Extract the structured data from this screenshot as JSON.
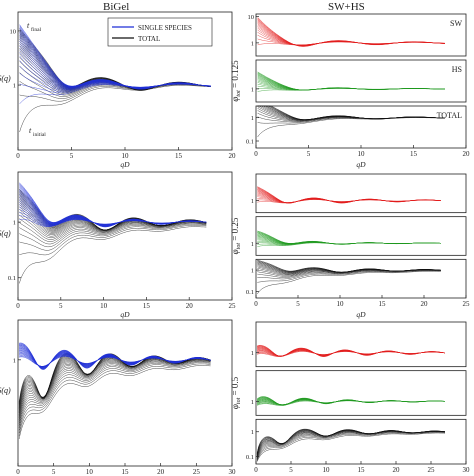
{
  "figure": {
    "left_title": "BiGel",
    "right_title": "SW+HS",
    "colors": {
      "blue": "#1f2fd6",
      "black": "#111111",
      "red": "#e21d1d",
      "green": "#1f9a1f",
      "axis": "#222222"
    }
  },
  "left_panels": [
    {
      "ylabel": "S(q)",
      "xlabel": "qD",
      "xlim": [
        0,
        20
      ],
      "xticks": [
        "0",
        "5",
        "10",
        "15",
        "20"
      ],
      "yscale": "log",
      "yticks": [
        "1",
        "10"
      ],
      "legend": {
        "single": "SINGLE SPECIES",
        "total": "TOTAL"
      },
      "annotations": {
        "final": "t",
        "final_sub": "final",
        "initial": "t",
        "initial_sub": "initial"
      }
    },
    {
      "ylabel": "S(q)",
      "xlabel": "qD",
      "xlim": [
        0,
        25
      ],
      "xticks": [
        "0",
        "5",
        "10",
        "15",
        "20",
        "25"
      ],
      "yscale": "log",
      "yticks": [
        "0.1",
        "1"
      ]
    },
    {
      "ylabel": "S(q)",
      "xlabel": "qD",
      "xlim": [
        0,
        30
      ],
      "xticks": [
        "0",
        "5",
        "10",
        "15",
        "20",
        "25",
        "30"
      ],
      "yscale": "log",
      "yticks": [
        "1"
      ]
    }
  ],
  "right_panels": [
    {
      "phi_label": "0.125",
      "xlabel": "qD",
      "xticks": [
        "0",
        "5",
        "10",
        "15",
        "20"
      ],
      "rows": [
        {
          "label": "SW",
          "yticks": [
            "10",
            "1"
          ]
        },
        {
          "label": "HS",
          "yticks": [
            "1"
          ]
        },
        {
          "label": "TOTAL",
          "yticks": [
            "1",
            "0.1"
          ]
        }
      ]
    },
    {
      "phi_label": "0.25",
      "xlabel": "qD",
      "xticks": [
        "0",
        "5",
        "10",
        "15",
        "20",
        "25"
      ],
      "rows": [
        {
          "label": "",
          "yticks": [
            "1"
          ]
        },
        {
          "label": "",
          "yticks": [
            "1"
          ]
        },
        {
          "label": "",
          "yticks": [
            "1",
            "0.1"
          ]
        }
      ]
    },
    {
      "phi_label": "0.5",
      "xlabel": "qD",
      "xticks": [
        "0",
        "5",
        "10",
        "15",
        "20",
        "25",
        "30"
      ],
      "rows": [
        {
          "label": "",
          "yticks": [
            "1"
          ]
        },
        {
          "label": "",
          "yticks": [
            "1"
          ]
        },
        {
          "label": "",
          "yticks": [
            "1",
            "0.1"
          ]
        }
      ]
    }
  ],
  "phi_prefix": "φ",
  "phi_sub": "tot",
  "phi_eq": " = ",
  "chart_data": [
    {
      "type": "line",
      "panel": "BiGel φ=0.125",
      "xlabel": "qD",
      "ylabel": "S(q)",
      "xlim": [
        0,
        20
      ],
      "yscale": "log",
      "series": [
        {
          "name": "SINGLE SPECIES",
          "peak_x": 0.5,
          "peak_y": 12,
          "oscillation_period": 7.2
        },
        {
          "name": "TOTAL",
          "peak_x": 0.5,
          "peak_y": 12,
          "oscillation_period": 7.2
        }
      ]
    },
    {
      "type": "line",
      "panel": "BiGel φ=0.25",
      "xlabel": "qD",
      "ylabel": "S(q)",
      "xlim": [
        0,
        25
      ],
      "yscale": "log",
      "series": [
        {
          "name": "SINGLE SPECIES",
          "peak_x": 0.5,
          "peak_y": 5,
          "oscillation_period": 6.6
        },
        {
          "name": "TOTAL",
          "peak_x": 0.5,
          "peak_y": 5,
          "oscillation_period": 6.6
        }
      ]
    },
    {
      "type": "line",
      "panel": "BiGel φ=0.5",
      "xlabel": "qD",
      "ylabel": "S(q)",
      "xlim": [
        0,
        30
      ],
      "yscale": "log",
      "series": [
        {
          "name": "SINGLE SPECIES",
          "peak_x": 6.5,
          "peak_y": 3,
          "oscillation_period": 6.2
        },
        {
          "name": "TOTAL",
          "peak_x": 6.8,
          "peak_y": 3,
          "oscillation_period": 6.2
        }
      ]
    },
    {
      "type": "line",
      "panel": "SW+HS φ=0.125",
      "xlabel": "qD",
      "series": [
        {
          "name": "SW",
          "peak_x": 0.5
        },
        {
          "name": "HS",
          "peak_x": 0.5
        },
        {
          "name": "TOTAL",
          "peak_x": 0.5
        }
      ]
    },
    {
      "type": "line",
      "panel": "SW+HS φ=0.25",
      "xlabel": "qD",
      "series": [
        {
          "name": "SW",
          "peak_x": 0.5
        },
        {
          "name": "HS",
          "peak_x": 0.5
        },
        {
          "name": "TOTAL",
          "peak_x": 0.5
        }
      ]
    },
    {
      "type": "line",
      "panel": "SW+HS φ=0.5",
      "xlabel": "qD",
      "series": [
        {
          "name": "SW",
          "peak_x": 6.5
        },
        {
          "name": "HS",
          "peak_x": 7
        },
        {
          "name": "TOTAL",
          "peak_x": 7
        }
      ]
    }
  ]
}
